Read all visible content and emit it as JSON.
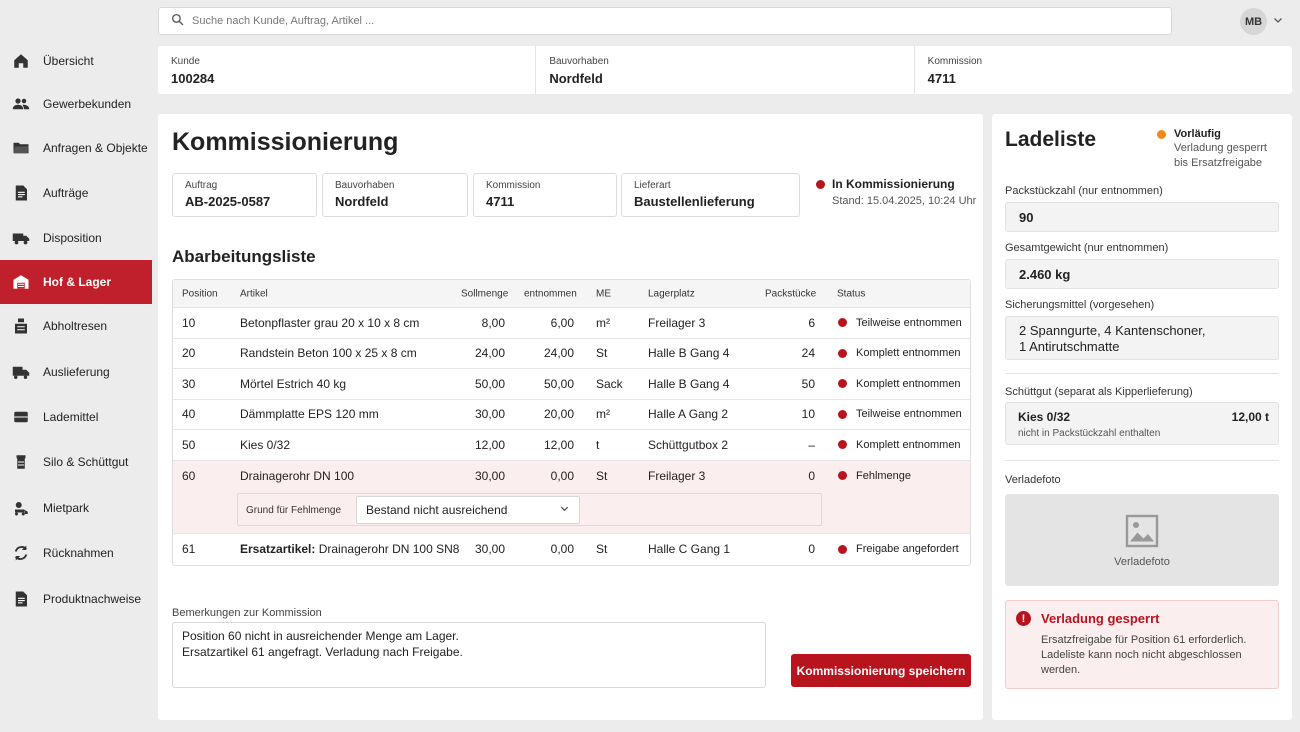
{
  "search": {
    "placeholder": "Suche nach Kunde, Auftrag, Artikel ..."
  },
  "user": {
    "initials": "MB"
  },
  "sidebar": {
    "items": [
      {
        "label": "Übersicht",
        "icon": "home-icon"
      },
      {
        "label": "Gewerbekunden",
        "icon": "users-icon"
      },
      {
        "label": "Anfragen & Objekte",
        "icon": "folder-icon"
      },
      {
        "label": "Aufträge",
        "icon": "document-icon"
      },
      {
        "label": "Disposition",
        "icon": "truck-icon"
      },
      {
        "label": "Hof & Lager",
        "icon": "warehouse-icon",
        "active": true
      },
      {
        "label": "Abholtresen",
        "icon": "counter-icon"
      },
      {
        "label": "Auslieferung",
        "icon": "delivery-icon"
      },
      {
        "label": "Lademittel",
        "icon": "pallet-icon"
      },
      {
        "label": "Silo & Schüttgut",
        "icon": "silo-icon"
      },
      {
        "label": "Mietpark",
        "icon": "machine-icon"
      },
      {
        "label": "Rücknahmen",
        "icon": "return-icon"
      },
      {
        "label": "Produktnachweise",
        "icon": "file-icon"
      }
    ]
  },
  "header": {
    "kunde_label": "Kunde",
    "kunde": "100284",
    "bauvorhaben_label": "Bauvorhaben",
    "bauvorhaben": "Nordfeld",
    "kommission_label": "Kommission",
    "kommission": "4711"
  },
  "main": {
    "title": "Kommissionierung",
    "info": {
      "auftrag_label": "Auftrag",
      "auftrag": "AB-2025-0587",
      "bauvorhaben_label": "Bauvorhaben",
      "bauvorhaben": "Nordfeld",
      "kommission_label": "Kommission",
      "kommission": "4711",
      "lieferart_label": "Lieferart",
      "lieferart": "Baustellenlieferung"
    },
    "status": {
      "label": "In Kommissionierung",
      "stand": "Stand: 15.04.2025, 10:24 Uhr",
      "color": "#b8141e"
    },
    "list_title": "Abarbeitungsliste",
    "columns": {
      "position": "Position",
      "artikel": "Artikel",
      "sollmenge": "Sollmenge",
      "entnommen": "entnommen",
      "me": "ME",
      "lagerplatz": "Lagerplatz",
      "packstuecke": "Packstücke",
      "status": "Status"
    },
    "rows": [
      {
        "pos": "10",
        "artikel": "Betonpflaster grau 20 x 10 x 8 cm",
        "soll": "8,00",
        "entn": "6,00",
        "me": "m²",
        "lager": "Freilager 3",
        "pack": "6",
        "status": "Teilweise entnommen"
      },
      {
        "pos": "20",
        "artikel": "Randstein Beton 100 x 25 x 8 cm",
        "soll": "24,00",
        "entn": "24,00",
        "me": "St",
        "lager": "Halle B Gang 4",
        "pack": "24",
        "status": "Komplett entnommen"
      },
      {
        "pos": "30",
        "artikel": "Mörtel Estrich 40 kg",
        "soll": "50,00",
        "entn": "50,00",
        "me": "Sack",
        "lager": "Halle B Gang 4",
        "pack": "50",
        "status": "Komplett entnommen"
      },
      {
        "pos": "40",
        "artikel": "Dämmplatte EPS 120 mm",
        "soll": "30,00",
        "entn": "20,00",
        "me": "m²",
        "lager": "Halle A Gang 2",
        "pack": "10",
        "status": "Teilweise entnommen"
      },
      {
        "pos": "50",
        "artikel": "Kies 0/32",
        "soll": "12,00",
        "entn": "12,00",
        "me": "t",
        "lager": "Schüttgutbox 2",
        "pack": "–",
        "status": "Komplett entnommen"
      },
      {
        "pos": "60",
        "artikel": "Drainagerohr DN 100",
        "soll": "30,00",
        "entn": "0,00",
        "me": "St",
        "lager": "Freilager 3",
        "pack": "0",
        "status": "Fehlmenge"
      },
      {
        "pos": "61",
        "artikel_prefix": "Ersatzartikel:",
        "artikel": "Drainagerohr DN 100 SN8",
        "soll": "30,00",
        "entn": "0,00",
        "me": "St",
        "lager": "Halle C Gang 1",
        "pack": "0",
        "status": "Freigabe angefordert"
      }
    ],
    "grund": {
      "label": "Grund für Fehlmenge",
      "value": "Bestand nicht ausreichend"
    },
    "remarks_label": "Bemerkungen zur Kommission",
    "remarks": "Position 60 nicht in ausreichender Menge am Lager.\nErsatzartikel 61 angefragt. Verladung nach Freigabe.",
    "save_label": "Kommissionierung speichern"
  },
  "side": {
    "title": "Ladeliste",
    "prelim_title": "Vorläufig",
    "prelim_line1": "Verladung gesperrt",
    "prelim_line2": "bis Ersatzfreigabe",
    "prelim_color": "#ef8a1a",
    "pack_label": "Packstückzahl (nur entnommen)",
    "pack_value": "90",
    "weight_label": "Gesamtgewicht (nur entnommen)",
    "weight_value": "2.460 kg",
    "sich_label": "Sicherungsmittel (vorgesehen)",
    "sich_line1": "2 Spanngurte, 4 Kantenschoner,",
    "sich_line2": "1 Antirutschmatte",
    "bulk_label": "Schüttgut (separat als Kipperlieferung)",
    "bulk_name": "Kies 0/32",
    "bulk_qty": "12,00 t",
    "bulk_note": "nicht in Packstückzahl enthalten",
    "photo_label": "Verladefoto",
    "photo_caption": "Verladefoto",
    "alert_title": "Verladung gesperrt",
    "alert_text": "Ersatzfreigabe für Position 61 erforderlich. Ladeliste kann noch nicht abgeschlossen werden.",
    "alert_color": "#b8141e"
  }
}
